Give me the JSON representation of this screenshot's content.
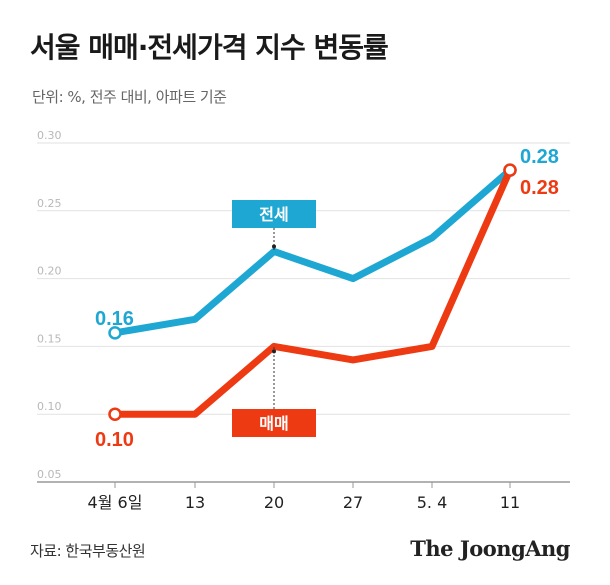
{
  "title": "서울 매매·전세가격 지수 변동률",
  "subtitle": "단위: %, 전주 대비, 아파트 기준",
  "source": "자료: 한국부동산원",
  "brand": "The JoongAng",
  "colors": {
    "jeonse": "#1ea7d2",
    "maemae": "#ee3a12",
    "grid": "#e2e2e2"
  },
  "chart_data": {
    "type": "line",
    "categories": [
      "4월 6일",
      "13",
      "20",
      "27",
      "5. 4",
      "11"
    ],
    "ylim": [
      0.05,
      0.3
    ],
    "yticks": [
      "0.05",
      "0.10",
      "0.15",
      "0.20",
      "0.25",
      "0.30"
    ],
    "grid": true,
    "series": [
      {
        "name": "전세",
        "values": [
          0.16,
          0.17,
          0.22,
          0.2,
          0.23,
          0.28
        ],
        "start_label": "0.16",
        "end_label": "0.28"
      },
      {
        "name": "매매",
        "values": [
          0.1,
          0.1,
          0.15,
          0.14,
          0.15,
          0.28
        ],
        "start_label": "0.10",
        "end_label": "0.28"
      }
    ]
  }
}
